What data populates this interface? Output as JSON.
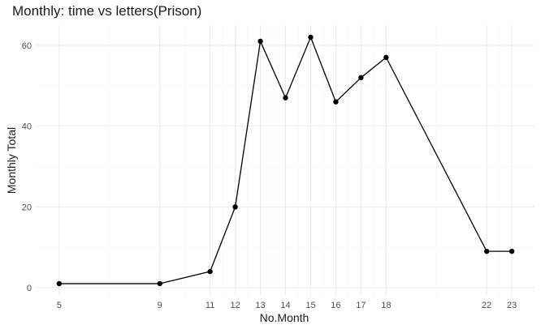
{
  "chart_data": {
    "type": "line",
    "title": "Monthly: time vs letters(Prison)",
    "xlabel": "No.Month",
    "ylabel": "Monthly Total",
    "x": [
      5,
      9,
      11,
      12,
      13,
      14,
      15,
      16,
      17,
      18,
      22,
      23
    ],
    "series": [
      {
        "values": [
          1,
          1,
          4,
          20,
          61,
          47,
          62,
          46,
          52,
          57,
          9,
          9
        ]
      }
    ],
    "xlim": [
      4.1,
      23.9
    ],
    "ylim": [
      -2,
      65
    ],
    "x_ticks": [
      5,
      9,
      11,
      12,
      13,
      14,
      15,
      16,
      17,
      18,
      22,
      23
    ],
    "x_tick_labels": [
      "5",
      "9",
      "11",
      "12",
      "13",
      "14",
      "15",
      "16",
      "17",
      "18",
      "22",
      "23"
    ],
    "y_ticks": [
      0,
      20,
      40,
      60
    ],
    "y_tick_labels": [
      "0",
      "20",
      "40",
      "60"
    ],
    "grid": true,
    "legend": "none",
    "colors": {
      "line": "#000000",
      "point": "#000000",
      "grid_major": "#ebebeb",
      "grid_minor": "#f4f4f4",
      "background": "#ffffff"
    }
  }
}
